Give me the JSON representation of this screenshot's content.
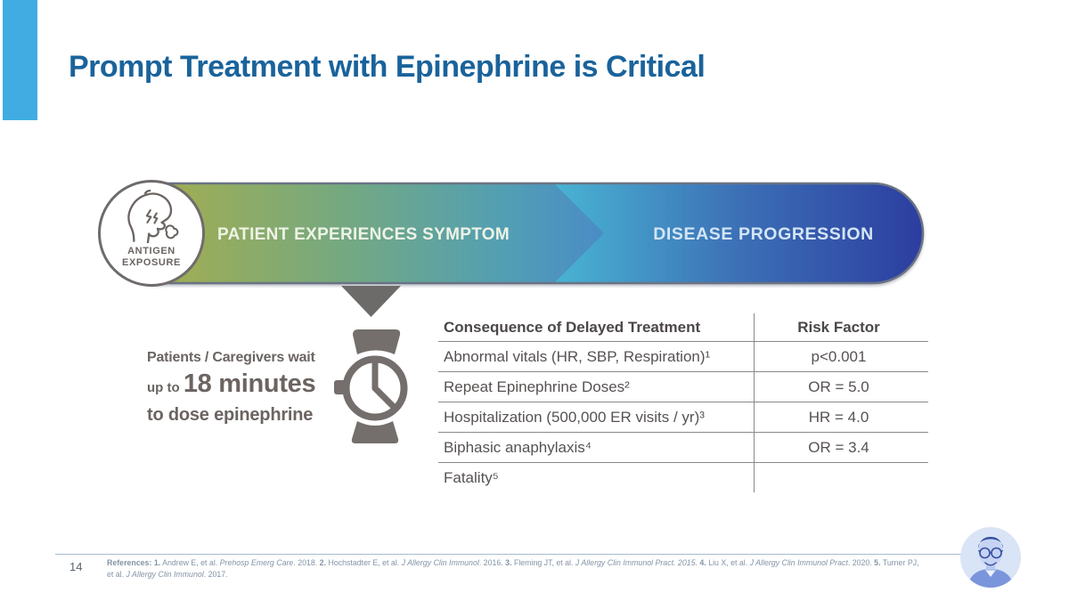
{
  "slide": {
    "title": "Prompt Treatment with Epinephrine is Critical",
    "page_number": "14"
  },
  "banner": {
    "badge_line1": "ANTIGEN",
    "badge_line2": "EXPOSURE",
    "stage1_label": "PATIENT EXPERIENCES SYMPTOM",
    "stage2_label": "DISEASE PROGRESSION"
  },
  "wait_callout": {
    "line1": "Patients / Caregivers wait",
    "line2_prefix": "up to ",
    "line2_emphasis": "18 minutes",
    "line3": "to dose epinephrine"
  },
  "table": {
    "col1_header": "Consequence of Delayed Treatment",
    "col2_header": "Risk Factor",
    "rows": [
      {
        "consequence": "Abnormal vitals (HR, SBP, Respiration)¹",
        "risk": "p<0.001"
      },
      {
        "consequence": "Repeat Epinephrine Doses²",
        "risk": "OR = 5.0"
      },
      {
        "consequence": "Hospitalization (500,000 ER visits / yr)³",
        "risk": "HR = 4.0"
      },
      {
        "consequence": "Biphasic anaphylaxis⁴",
        "risk": "OR = 3.4"
      },
      {
        "consequence": "Fatality⁵",
        "risk": ""
      }
    ]
  },
  "footer": {
    "reference_lines": [
      [
        {
          "t": "References: ",
          "b": true
        },
        {
          "t": "1.",
          "b": true
        },
        {
          "t": " Andrew E, et al. "
        },
        {
          "t": "Prehosp Emerg Care",
          "i": true
        },
        {
          "t": ". 2018. "
        },
        {
          "t": "2.",
          "b": true
        },
        {
          "t": " Hochstadter E, et al. "
        },
        {
          "t": "J Allergy Clin Immunol",
          "i": true
        },
        {
          "t": ". 2016. "
        },
        {
          "t": "3.",
          "b": true
        },
        {
          "t": " Fleming JT, et al. "
        },
        {
          "t": "J Allergy Clin Immunol Pract. 2015.",
          "i": true
        },
        {
          "t": " "
        },
        {
          "t": "4.",
          "b": true
        },
        {
          "t": " Liu X, et al. "
        },
        {
          "t": "J Allergy Clin Immunol Pract",
          "i": true
        },
        {
          "t": ". 2020. "
        },
        {
          "t": "5.",
          "b": true
        },
        {
          "t": " Turner PJ,"
        }
      ],
      [
        {
          "t": "et al. "
        },
        {
          "t": "J Allergy Clin Immunol",
          "i": true
        },
        {
          "t": ". 2017."
        }
      ]
    ]
  },
  "icons": {
    "badge_icon": "coughing-person-icon",
    "wait_icon": "wristwatch-clock-icon",
    "pointer_icon": "down-pointer-triangle",
    "avatar": "presenter-photo"
  },
  "colors": {
    "accent": "#41ace2",
    "title": "#1a639b",
    "banner_border": "#6b7384",
    "stage1_a": "#a4ae4e",
    "stage1_b": "#72a884",
    "stage1_c": "#529fb4",
    "stage1_d": "#4a8cc6",
    "stage2_a": "#49b4d3",
    "stage2_b": "#3c70b6",
    "stage2_c": "#2c3da0",
    "stage1_text": "#eef3e6",
    "stage2_text": "#d3e5f6",
    "gray_icon": "#746e6c",
    "pointer_gray": "#6d6a6a",
    "badge_border": "#6f6b6b",
    "gray_text": "#6b6461",
    "table_text": "#575252",
    "table_header": "#4c4747",
    "table_line": "#8a8888",
    "footer_text": "#8494a5",
    "footer_line": "#a9bccd",
    "page_num": "#5a646e"
  }
}
